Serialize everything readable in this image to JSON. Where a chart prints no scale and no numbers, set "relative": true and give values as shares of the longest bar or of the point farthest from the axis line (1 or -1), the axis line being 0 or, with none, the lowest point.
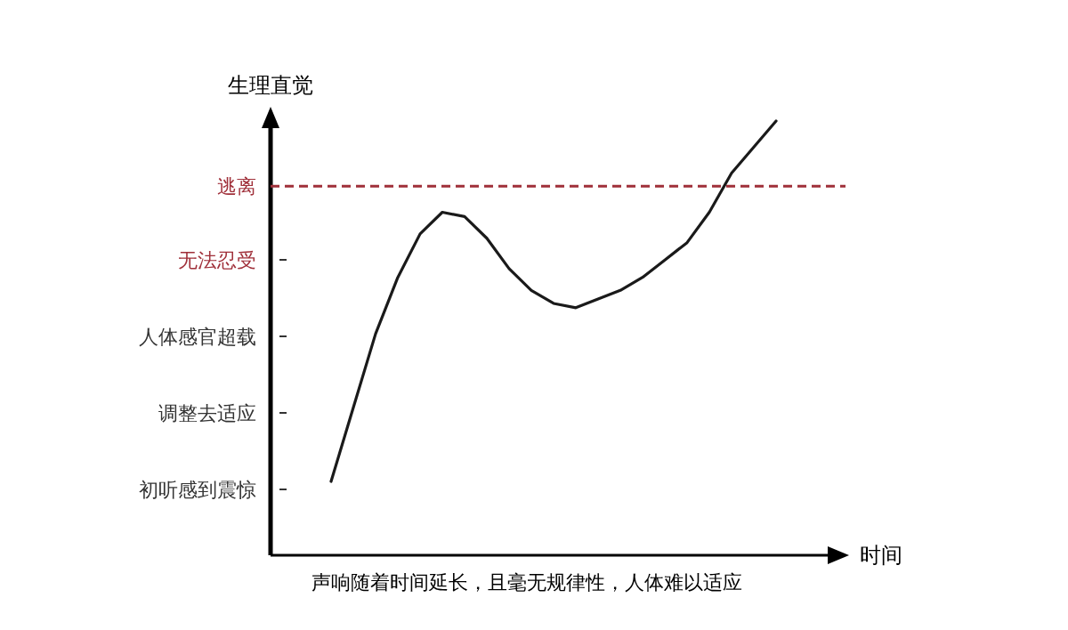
{
  "chart_data": {
    "type": "line",
    "ylabel": "生理直觉",
    "xlabel": "时间",
    "relative": true,
    "categories": [
      null,
      null,
      null,
      null,
      null,
      null,
      null,
      null,
      null,
      null,
      null,
      null,
      null,
      null,
      null,
      null,
      null,
      null,
      null,
      null,
      null
    ],
    "series": [
      {
        "color": "#1a1a1a",
        "values": [
          0.17,
          0.34,
          0.51,
          0.64,
          0.74,
          0.79,
          0.78,
          0.73,
          0.66,
          0.61,
          0.58,
          0.57,
          0.59,
          0.61,
          0.64,
          0.68,
          0.72,
          0.79,
          0.88,
          0.94,
          1.0
        ]
      }
    ],
    "ref_lines": [
      {
        "axis": "y",
        "value": 0.85,
        "color": "#a0303a",
        "line_style": "dashed",
        "label": "逃离"
      }
    ],
    "marker": "none",
    "line_style": "solid",
    "annotations": [
      "初听感到震惊",
      "调整去适应",
      "人体感官超载",
      "无法忍受",
      "声响随着时间延长，且毫无规律性，人体难以适应"
    ]
  }
}
